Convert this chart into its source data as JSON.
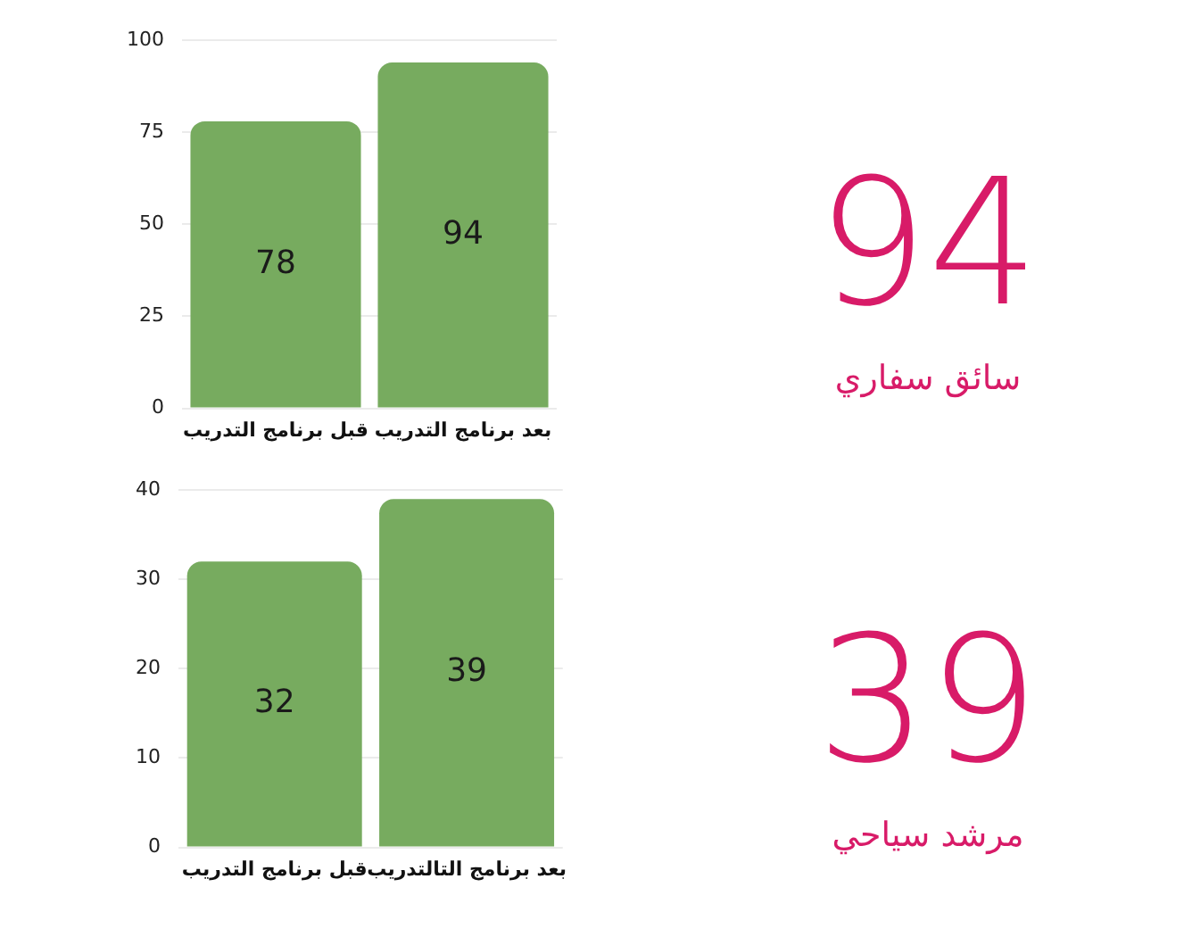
{
  "chart_data": [
    {
      "type": "bar",
      "categories": [
        "قبل برنامج التدريب",
        "بعد برنامج التدريب"
      ],
      "values": [
        78,
        94
      ],
      "color": "#77ab5f",
      "ylim": [
        0,
        100
      ],
      "yticks": [
        0,
        25,
        50,
        75,
        100
      ],
      "grid": "y",
      "data_labels": true
    },
    {
      "type": "other",
      "title": "94",
      "subtitle": "سائق سفاري",
      "color": "#d81b68"
    },
    {
      "type": "bar",
      "categories": [
        "قبل برنامج التدريب",
        "بعد برنامج التالتدريب"
      ],
      "values": [
        32,
        39
      ],
      "color": "#77ab5f",
      "ylim": [
        0,
        40
      ],
      "yticks": [
        0,
        10,
        20,
        30,
        40
      ],
      "grid": "y",
      "data_labels": true
    },
    {
      "type": "other",
      "title": "39",
      "subtitle": "مرشد سياحي",
      "color": "#d81b68"
    }
  ]
}
